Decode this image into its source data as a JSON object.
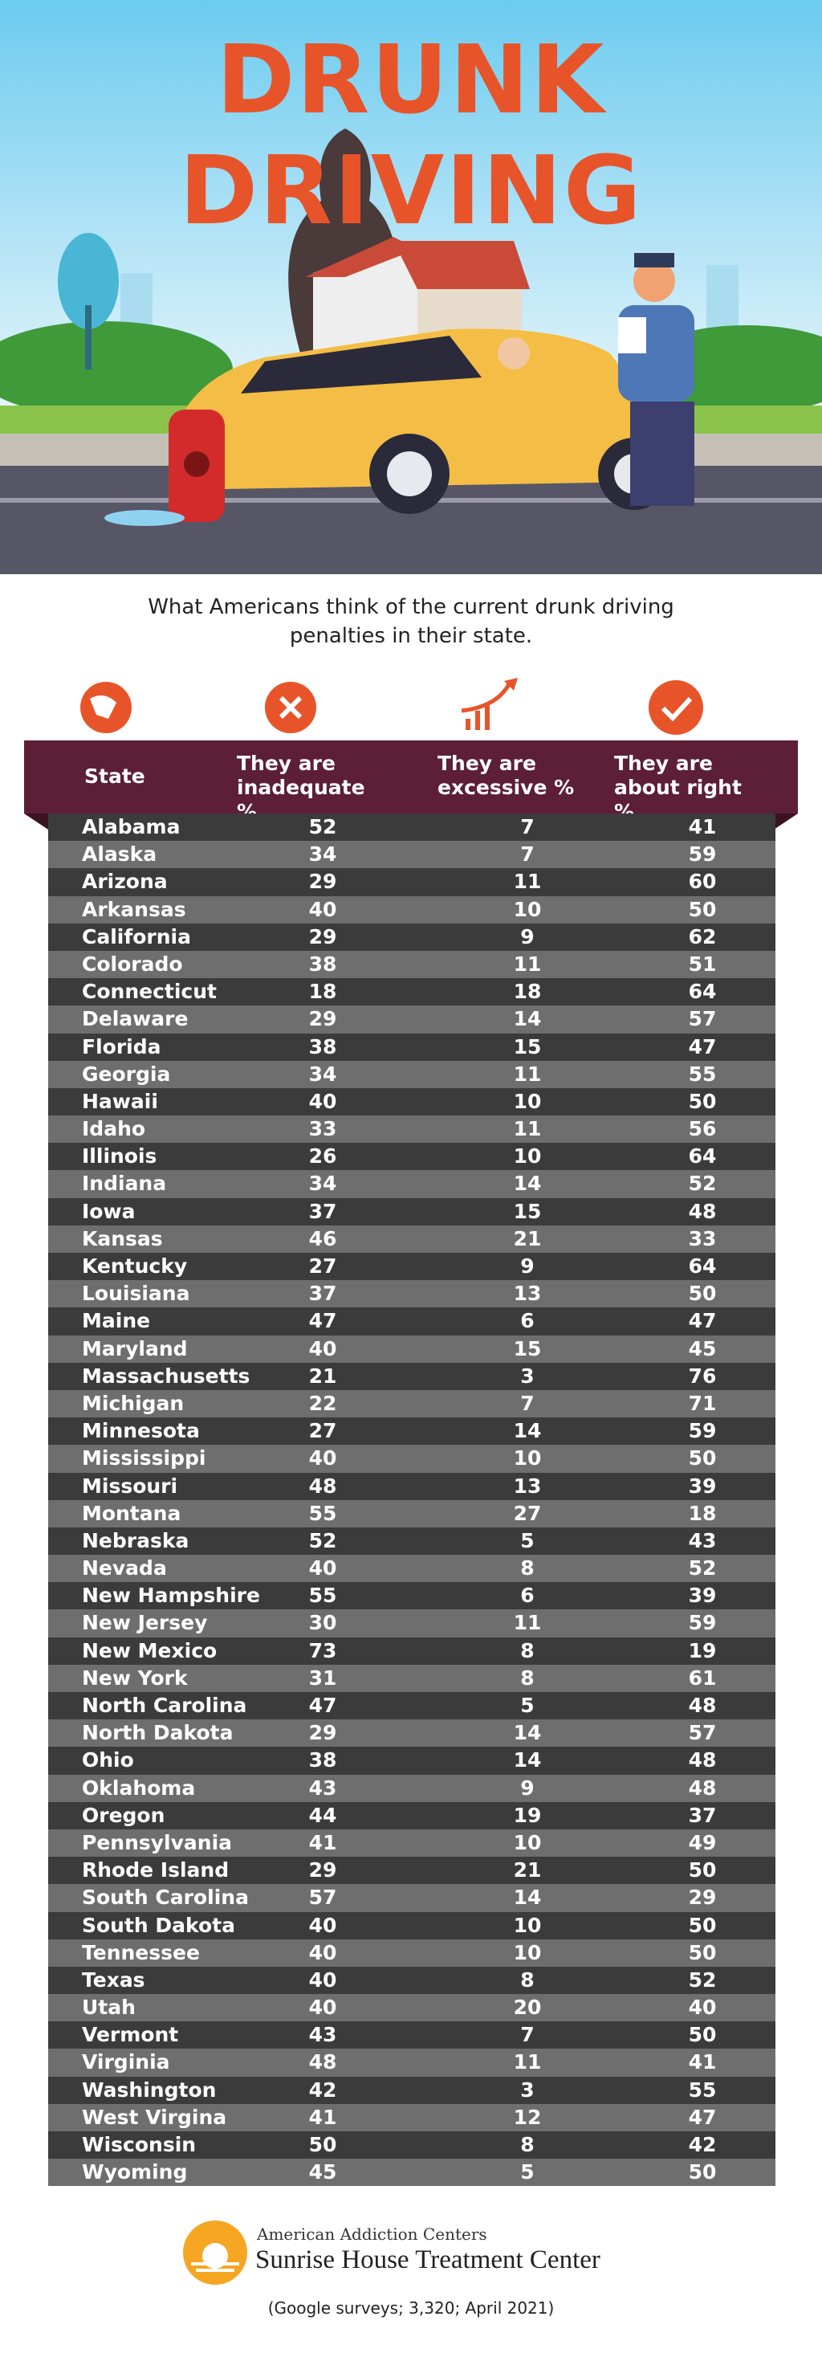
{
  "header": {
    "title": "DRUNK DRIVING",
    "subtitle": "What Americans think of the current drunk driving penalties in their state."
  },
  "table": {
    "columns": [
      "State",
      "They are inadequate %",
      "They are excessive %",
      "They are about right %"
    ],
    "rows": [
      [
        "Alabama",
        52,
        7,
        41
      ],
      [
        "Alaska",
        34,
        7,
        59
      ],
      [
        "Arizona",
        29,
        11,
        60
      ],
      [
        "Arkansas",
        40,
        10,
        50
      ],
      [
        "California",
        29,
        9,
        62
      ],
      [
        "Colorado",
        38,
        11,
        51
      ],
      [
        "Connecticut",
        18,
        18,
        64
      ],
      [
        "Delaware",
        29,
        14,
        57
      ],
      [
        "Florida",
        38,
        15,
        47
      ],
      [
        "Georgia",
        34,
        11,
        55
      ],
      [
        "Hawaii",
        40,
        10,
        50
      ],
      [
        "Idaho",
        33,
        11,
        56
      ],
      [
        "Illinois",
        26,
        10,
        64
      ],
      [
        "Indiana",
        34,
        14,
        52
      ],
      [
        "Iowa",
        37,
        15,
        48
      ],
      [
        "Kansas",
        46,
        21,
        33
      ],
      [
        "Kentucky",
        27,
        9,
        64
      ],
      [
        "Louisiana",
        37,
        13,
        50
      ],
      [
        "Maine",
        47,
        6,
        47
      ],
      [
        "Maryland",
        40,
        15,
        45
      ],
      [
        "Massachusetts",
        21,
        3,
        76
      ],
      [
        "Michigan",
        22,
        7,
        71
      ],
      [
        "Minnesota",
        27,
        14,
        59
      ],
      [
        "Mississippi",
        40,
        10,
        50
      ],
      [
        "Missouri",
        48,
        13,
        39
      ],
      [
        "Montana",
        55,
        27,
        18
      ],
      [
        "Nebraska",
        52,
        5,
        43
      ],
      [
        "Nevada",
        40,
        8,
        52
      ],
      [
        "New Hampshire",
        55,
        6,
        39
      ],
      [
        "New Jersey",
        30,
        11,
        59
      ],
      [
        "New Mexico",
        73,
        8,
        19
      ],
      [
        "New York",
        31,
        8,
        61
      ],
      [
        "North Carolina",
        47,
        5,
        48
      ],
      [
        "North Dakota",
        29,
        14,
        57
      ],
      [
        "Ohio",
        38,
        14,
        48
      ],
      [
        "Oklahoma",
        43,
        9,
        48
      ],
      [
        "Oregon",
        44,
        19,
        37
      ],
      [
        "Pennsylvania",
        41,
        10,
        49
      ],
      [
        "Rhode Island",
        29,
        21,
        50
      ],
      [
        "South Carolina",
        57,
        14,
        29
      ],
      [
        "South Dakota",
        40,
        10,
        50
      ],
      [
        "Tennessee",
        40,
        10,
        50
      ],
      [
        "Texas",
        40,
        8,
        52
      ],
      [
        "Utah",
        40,
        20,
        40
      ],
      [
        "Vermont",
        43,
        7,
        50
      ],
      [
        "Virginia",
        48,
        11,
        41
      ],
      [
        "Washington",
        42,
        3,
        55
      ],
      [
        "West Virgina",
        41,
        12,
        47
      ],
      [
        "Wisconsin",
        50,
        8,
        42
      ],
      [
        "Wyoming",
        45,
        5,
        50
      ]
    ]
  },
  "footer": {
    "org": "American Addiction Centers",
    "brand": "Sunrise House Treatment Center",
    "source": "(Google surveys; 3,320; April 2021)"
  }
}
